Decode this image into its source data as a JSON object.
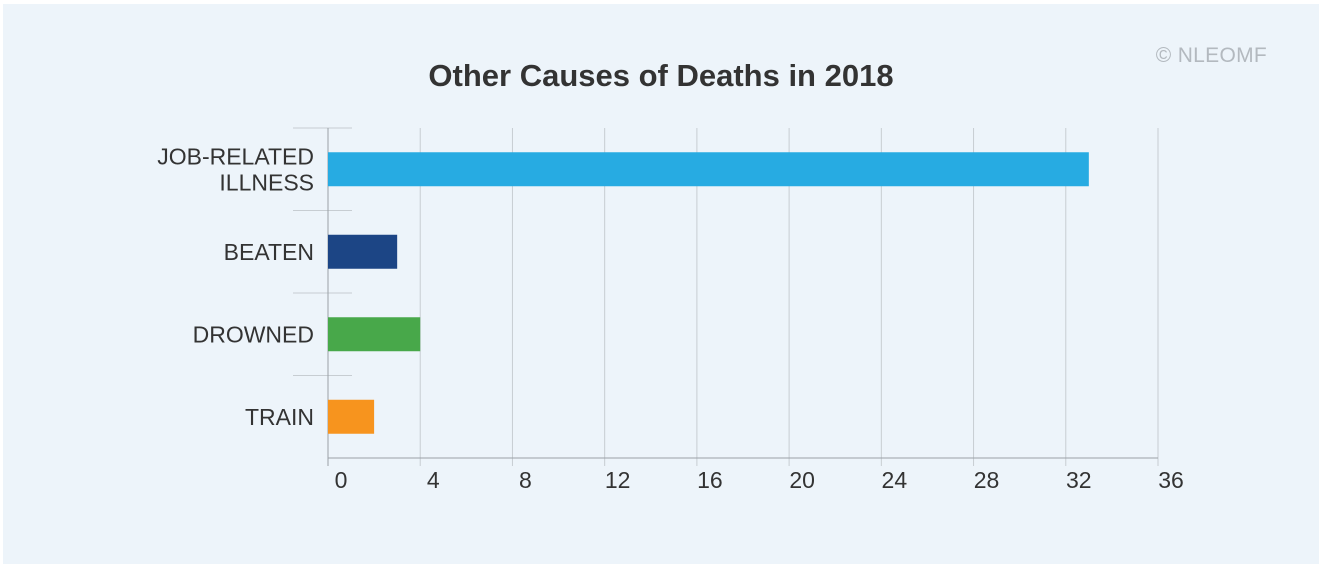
{
  "watermark": "© NLEOMF",
  "chart_data": {
    "type": "bar",
    "orientation": "horizontal",
    "title": "Other Causes of Deaths in 2018",
    "categories": [
      [
        "JOB-RELATED",
        "ILLNESS"
      ],
      [
        "BEATEN"
      ],
      [
        "DROWNED"
      ],
      [
        "TRAIN"
      ]
    ],
    "values": [
      33,
      3,
      4,
      2
    ],
    "colors": [
      "#27abe2",
      "#1c4585",
      "#48a84a",
      "#f7941e"
    ],
    "xlim": [
      0,
      36
    ],
    "xticks": [
      0,
      4,
      8,
      12,
      16,
      20,
      24,
      28,
      32,
      36
    ],
    "grid": true,
    "legend": "none"
  }
}
